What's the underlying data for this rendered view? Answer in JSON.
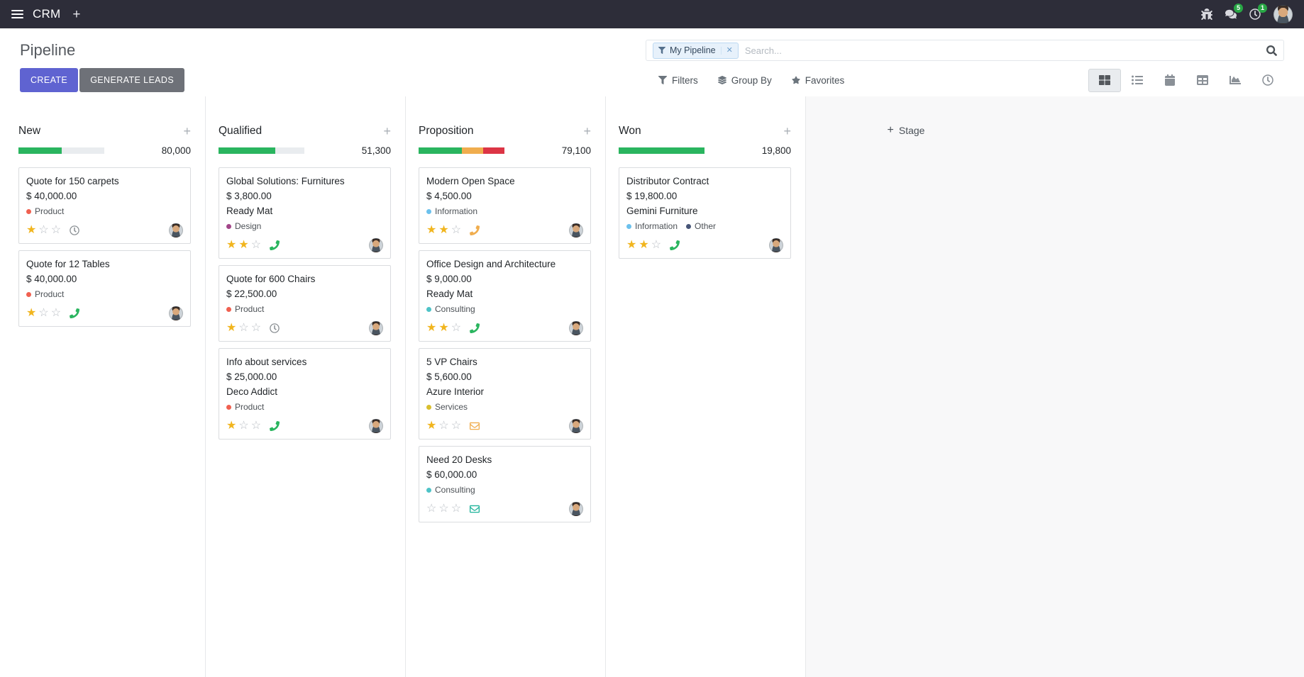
{
  "topbar": {
    "app_name": "CRM",
    "messages_badge": "5",
    "activities_badge": "1"
  },
  "control_panel": {
    "title": "Pipeline",
    "buttons": {
      "create": "CREATE",
      "generate_leads": "GENERATE LEADS"
    },
    "search": {
      "facet_label": "My Pipeline",
      "placeholder": "Search..."
    },
    "menus": {
      "filters": "Filters",
      "group_by": "Group By",
      "favorites": "Favorites"
    }
  },
  "colors": {
    "primary": "#5f63d1",
    "secondary_button": "#6e7178",
    "success": "#2ab55f",
    "warning": "#f0ad4e",
    "danger": "#dc3545",
    "topbar_bg": "#2d2d39"
  },
  "kanban": {
    "add_stage_label": "Stage",
    "columns": [
      {
        "name": "New",
        "total": "80,000",
        "progress": [
          {
            "color": "#2ab55f",
            "pct": 50
          },
          {
            "color": "#e9ecef",
            "pct": 50
          }
        ],
        "cards": [
          {
            "title": "Quote for 150 carpets",
            "amount": "$ 40,000.00",
            "tags": [
              {
                "label": "Product",
                "color": "#f06050"
              }
            ],
            "stars": 1,
            "activity": {
              "type": "clock",
              "name": "clock-activity-icon",
              "color": "#8b9094"
            }
          },
          {
            "title": "Quote for 12 Tables",
            "amount": "$ 40,000.00",
            "tags": [
              {
                "label": "Product",
                "color": "#f06050"
              }
            ],
            "stars": 1,
            "activity": {
              "type": "phone",
              "name": "phone-activity-icon",
              "color": "#2ab55f"
            }
          }
        ]
      },
      {
        "name": "Qualified",
        "total": "51,300",
        "progress": [
          {
            "color": "#2ab55f",
            "pct": 66
          },
          {
            "color": "#e9ecef",
            "pct": 34
          }
        ],
        "cards": [
          {
            "title": "Global Solutions: Furnitures",
            "amount": "$ 3,800.00",
            "partner": "Ready Mat",
            "tags": [
              {
                "label": "Design",
                "color": "#a24689"
              }
            ],
            "stars": 2,
            "activity": {
              "type": "phone",
              "name": "phone-activity-icon",
              "color": "#2ab55f"
            }
          },
          {
            "title": "Quote for 600 Chairs",
            "amount": "$ 22,500.00",
            "tags": [
              {
                "label": "Product",
                "color": "#f06050"
              }
            ],
            "stars": 1,
            "activity": {
              "type": "clock",
              "name": "clock-activity-icon",
              "color": "#8b9094"
            }
          },
          {
            "title": "Info about services",
            "amount": "$ 25,000.00",
            "partner": "Deco Addict",
            "tags": [
              {
                "label": "Product",
                "color": "#f06050"
              }
            ],
            "stars": 1,
            "activity": {
              "type": "phone",
              "name": "phone-activity-icon",
              "color": "#2ab55f"
            }
          }
        ]
      },
      {
        "name": "Proposition",
        "total": "79,100",
        "progress": [
          {
            "color": "#2ab55f",
            "pct": 50
          },
          {
            "color": "#f0ad4e",
            "pct": 25
          },
          {
            "color": "#dc3545",
            "pct": 25
          }
        ],
        "cards": [
          {
            "title": "Modern Open Space",
            "amount": "$ 4,500.00",
            "tags": [
              {
                "label": "Information",
                "color": "#6cc1ed"
              }
            ],
            "stars": 2,
            "activity": {
              "type": "phone",
              "name": "phone-activity-icon",
              "color": "#f0ad4e"
            }
          },
          {
            "title": "Office Design and Architecture",
            "amount": "$ 9,000.00",
            "partner": "Ready Mat",
            "tags": [
              {
                "label": "Consulting",
                "color": "#4ec3c7"
              }
            ],
            "stars": 2,
            "activity": {
              "type": "phone",
              "name": "phone-activity-icon",
              "color": "#2ab55f"
            }
          },
          {
            "title": "5 VP Chairs",
            "amount": "$ 5,600.00",
            "partner": "Azure Interior",
            "tags": [
              {
                "label": "Services",
                "color": "#d9bf2e"
              }
            ],
            "stars": 1,
            "activity": {
              "type": "envelope",
              "name": "envelope-activity-icon",
              "color": "#f0ad4e"
            }
          },
          {
            "title": "Need 20 Desks",
            "amount": "$ 60,000.00",
            "tags": [
              {
                "label": "Consulting",
                "color": "#4ec3c7"
              }
            ],
            "stars": 0,
            "activity": {
              "type": "envelope",
              "name": "envelope-activity-icon",
              "color": "#1fb39a"
            }
          }
        ]
      },
      {
        "name": "Won",
        "total": "19,800",
        "progress": [
          {
            "color": "#2ab55f",
            "pct": 100
          }
        ],
        "cards": [
          {
            "title": "Distributor Contract",
            "amount": "$ 19,800.00",
            "partner": "Gemini Furniture",
            "tags": [
              {
                "label": "Information",
                "color": "#6cc1ed"
              },
              {
                "label": "Other",
                "color": "#475577"
              }
            ],
            "stars": 2,
            "activity": {
              "type": "phone",
              "name": "phone-activity-icon",
              "color": "#2ab55f"
            }
          }
        ]
      }
    ]
  }
}
